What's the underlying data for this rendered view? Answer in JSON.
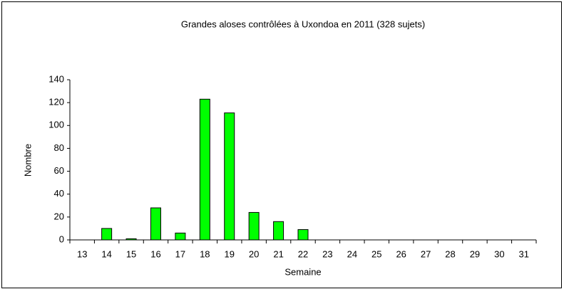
{
  "chart_data": {
    "type": "bar",
    "title": "Grandes aloses contrôlées à Uxondoa en 2011 (328 sujets)",
    "x_label": "Semaine",
    "y_label": "Nombre",
    "categories": [
      "13",
      "14",
      "15",
      "16",
      "17",
      "18",
      "19",
      "20",
      "21",
      "22",
      "23",
      "24",
      "25",
      "26",
      "27",
      "28",
      "29",
      "30",
      "31"
    ],
    "values": [
      0,
      10,
      1,
      28,
      6,
      123,
      111,
      24,
      16,
      9,
      0,
      0,
      0,
      0,
      0,
      0,
      0,
      0,
      0
    ],
    "color": "#00ff00",
    "ylim": [
      0,
      140
    ],
    "yticks": [
      0,
      20,
      40,
      60,
      80,
      100,
      120,
      140
    ],
    "grid": false
  }
}
